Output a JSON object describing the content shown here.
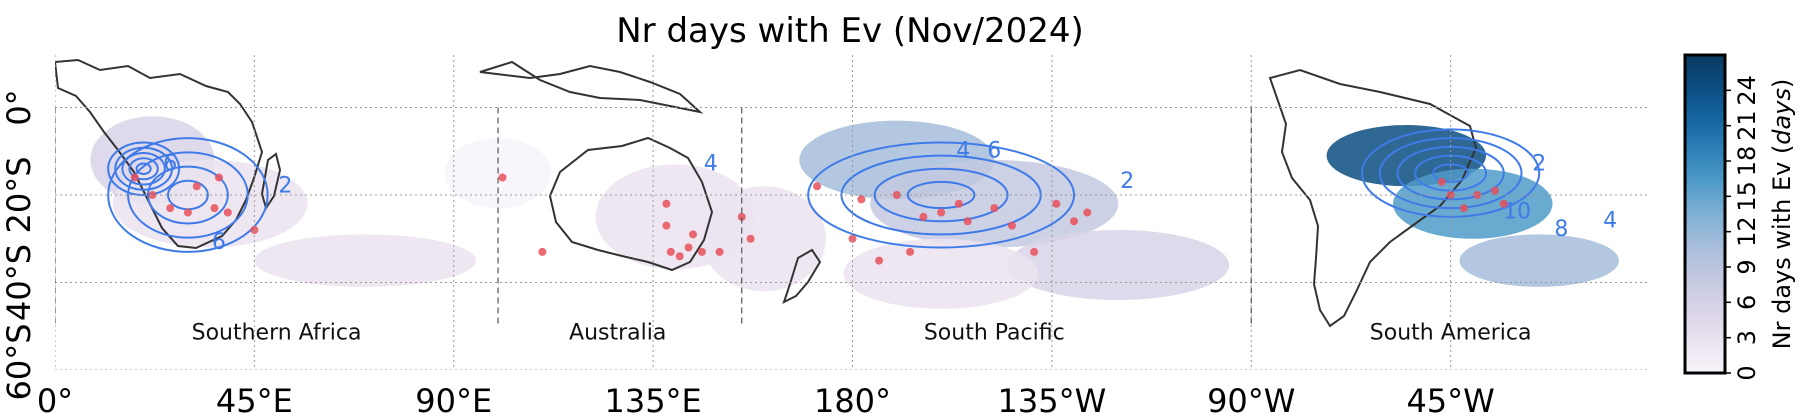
{
  "chart_data": {
    "type": "heatmap",
    "title": "Nr days with Ev (Nov/2024)",
    "x_ticks": [
      "0°",
      "45°E",
      "90°E",
      "135°E",
      "180°",
      "135°W",
      "90°W",
      "45°W"
    ],
    "y_ticks": [
      "0°",
      "20°S",
      "40°S",
      "60°S"
    ],
    "x_lon": [
      0,
      45,
      90,
      135,
      180,
      225,
      270,
      315
    ],
    "y_lat": [
      0,
      -20,
      -40,
      -60
    ],
    "xlim_lon": [
      0,
      360
    ],
    "ylim_lat": [
      -60,
      12
    ],
    "grid": true,
    "colorbar": {
      "label_prefix": "Nr days with Ev (",
      "label_unit": "days",
      "label_suffix": ")",
      "ticks": [
        "0",
        "3",
        "6",
        "9",
        "12",
        "15",
        "18",
        "21",
        "24"
      ],
      "tick_values": [
        0,
        3,
        6,
        9,
        12,
        15,
        18,
        21,
        24
      ],
      "range": [
        0,
        27
      ],
      "colors": [
        "#f7f4fa",
        "#ebe3f0",
        "#d9d3e8",
        "#c3c9e0",
        "#a6bddb",
        "#7fb0d4",
        "#4f9bc8",
        "#2f81b8",
        "#1565a0",
        "#0b4d80",
        "#083a60"
      ]
    },
    "regions": [
      {
        "label": "Southern Africa",
        "lon": 50,
        "lat": -53
      },
      {
        "label": "Australia",
        "lon": 127,
        "lat": -53
      },
      {
        "label": "South Pacific",
        "lon": 212,
        "lat": -53
      },
      {
        "label": "South America",
        "lon": 315,
        "lat": -53
      }
    ],
    "region_boundaries_lon": [
      0,
      100,
      155,
      270
    ],
    "density_blobs": [
      {
        "lon": 22,
        "lat": -12,
        "rlon": 14,
        "rlat": 10,
        "value": 6
      },
      {
        "lon": 35,
        "lat": -22,
        "rlon": 22,
        "rlat": 10,
        "value": 3
      },
      {
        "lon": 70,
        "lat": -35,
        "rlon": 25,
        "rlat": 6,
        "value": 2
      },
      {
        "lon": 100,
        "lat": -15,
        "rlon": 12,
        "rlat": 8,
        "value": 1
      },
      {
        "lon": 140,
        "lat": -25,
        "rlon": 18,
        "rlat": 12,
        "value": 4
      },
      {
        "lon": 160,
        "lat": -30,
        "rlon": 14,
        "rlat": 12,
        "value": 3
      },
      {
        "lon": 190,
        "lat": -12,
        "rlon": 22,
        "rlat": 9,
        "value": 10
      },
      {
        "lon": 212,
        "lat": -22,
        "rlon": 28,
        "rlat": 10,
        "value": 8
      },
      {
        "lon": 240,
        "lat": -36,
        "rlon": 25,
        "rlat": 8,
        "value": 6
      },
      {
        "lon": 200,
        "lat": -38,
        "rlon": 22,
        "rlat": 8,
        "value": 3
      },
      {
        "lon": 305,
        "lat": -11,
        "rlon": 18,
        "rlat": 7,
        "value": 24
      },
      {
        "lon": 320,
        "lat": -22,
        "rlon": 18,
        "rlat": 8,
        "value": 15
      },
      {
        "lon": 335,
        "lat": -35,
        "rlon": 18,
        "rlat": 6,
        "value": 10
      }
    ],
    "contour_centers": [
      {
        "lon": 20,
        "lat": -14,
        "rlon": 8,
        "rlat": 6,
        "levels": 5
      },
      {
        "lon": 30,
        "lat": -20,
        "rlon": 18,
        "rlat": 13,
        "levels": 4
      },
      {
        "lon": 200,
        "lat": -20,
        "rlon": 30,
        "rlat": 12,
        "levels": 4
      },
      {
        "lon": 315,
        "lat": -15,
        "rlon": 20,
        "rlat": 10,
        "levels": 5
      }
    ],
    "contour_labels": [
      {
        "text": "2",
        "lon": 52,
        "lat": -18
      },
      {
        "text": "6",
        "lon": 37,
        "lat": -31
      },
      {
        "text": "6",
        "lon": 26,
        "lat": -13
      },
      {
        "text": "4",
        "lon": 148,
        "lat": -13
      },
      {
        "text": "4",
        "lon": 205,
        "lat": -10
      },
      {
        "text": "6",
        "lon": 212,
        "lat": -10
      },
      {
        "text": "2",
        "lon": 242,
        "lat": -17
      },
      {
        "text": "2",
        "lon": 335,
        "lat": -13
      },
      {
        "text": "10",
        "lon": 330,
        "lat": -24
      },
      {
        "text": "8",
        "lon": 340,
        "lat": -28
      },
      {
        "text": "4",
        "lon": 351,
        "lat": -26
      }
    ],
    "event_points": [
      {
        "lon": 18,
        "lat": -16
      },
      {
        "lon": 22,
        "lat": -20
      },
      {
        "lon": 26,
        "lat": -23
      },
      {
        "lon": 30,
        "lat": -24
      },
      {
        "lon": 32,
        "lat": -18
      },
      {
        "lon": 36,
        "lat": -23
      },
      {
        "lon": 39,
        "lat": -24
      },
      {
        "lon": 45,
        "lat": -28
      },
      {
        "lon": 37,
        "lat": -16
      },
      {
        "lon": 101,
        "lat": -16
      },
      {
        "lon": 110,
        "lat": -33
      },
      {
        "lon": 138,
        "lat": -22
      },
      {
        "lon": 138,
        "lat": -27
      },
      {
        "lon": 139,
        "lat": -33
      },
      {
        "lon": 141,
        "lat": -34
      },
      {
        "lon": 143,
        "lat": -32
      },
      {
        "lon": 144,
        "lat": -29
      },
      {
        "lon": 146,
        "lat": -33
      },
      {
        "lon": 150,
        "lat": -33
      },
      {
        "lon": 155,
        "lat": -25
      },
      {
        "lon": 157,
        "lat": -30
      },
      {
        "lon": 172,
        "lat": -18
      },
      {
        "lon": 180,
        "lat": -30
      },
      {
        "lon": 182,
        "lat": -21
      },
      {
        "lon": 186,
        "lat": -35
      },
      {
        "lon": 190,
        "lat": -20
      },
      {
        "lon": 193,
        "lat": -33
      },
      {
        "lon": 196,
        "lat": -25
      },
      {
        "lon": 200,
        "lat": -24
      },
      {
        "lon": 204,
        "lat": -22
      },
      {
        "lon": 206,
        "lat": -26
      },
      {
        "lon": 212,
        "lat": -23
      },
      {
        "lon": 216,
        "lat": -27
      },
      {
        "lon": 221,
        "lat": -33
      },
      {
        "lon": 226,
        "lat": -22
      },
      {
        "lon": 230,
        "lat": -26
      },
      {
        "lon": 233,
        "lat": -24
      },
      {
        "lon": 315,
        "lat": -20
      },
      {
        "lon": 318,
        "lat": -23
      },
      {
        "lon": 321,
        "lat": -20
      },
      {
        "lon": 325,
        "lat": -19
      },
      {
        "lon": 327,
        "lat": -22
      },
      {
        "lon": 313,
        "lat": -17
      }
    ]
  }
}
